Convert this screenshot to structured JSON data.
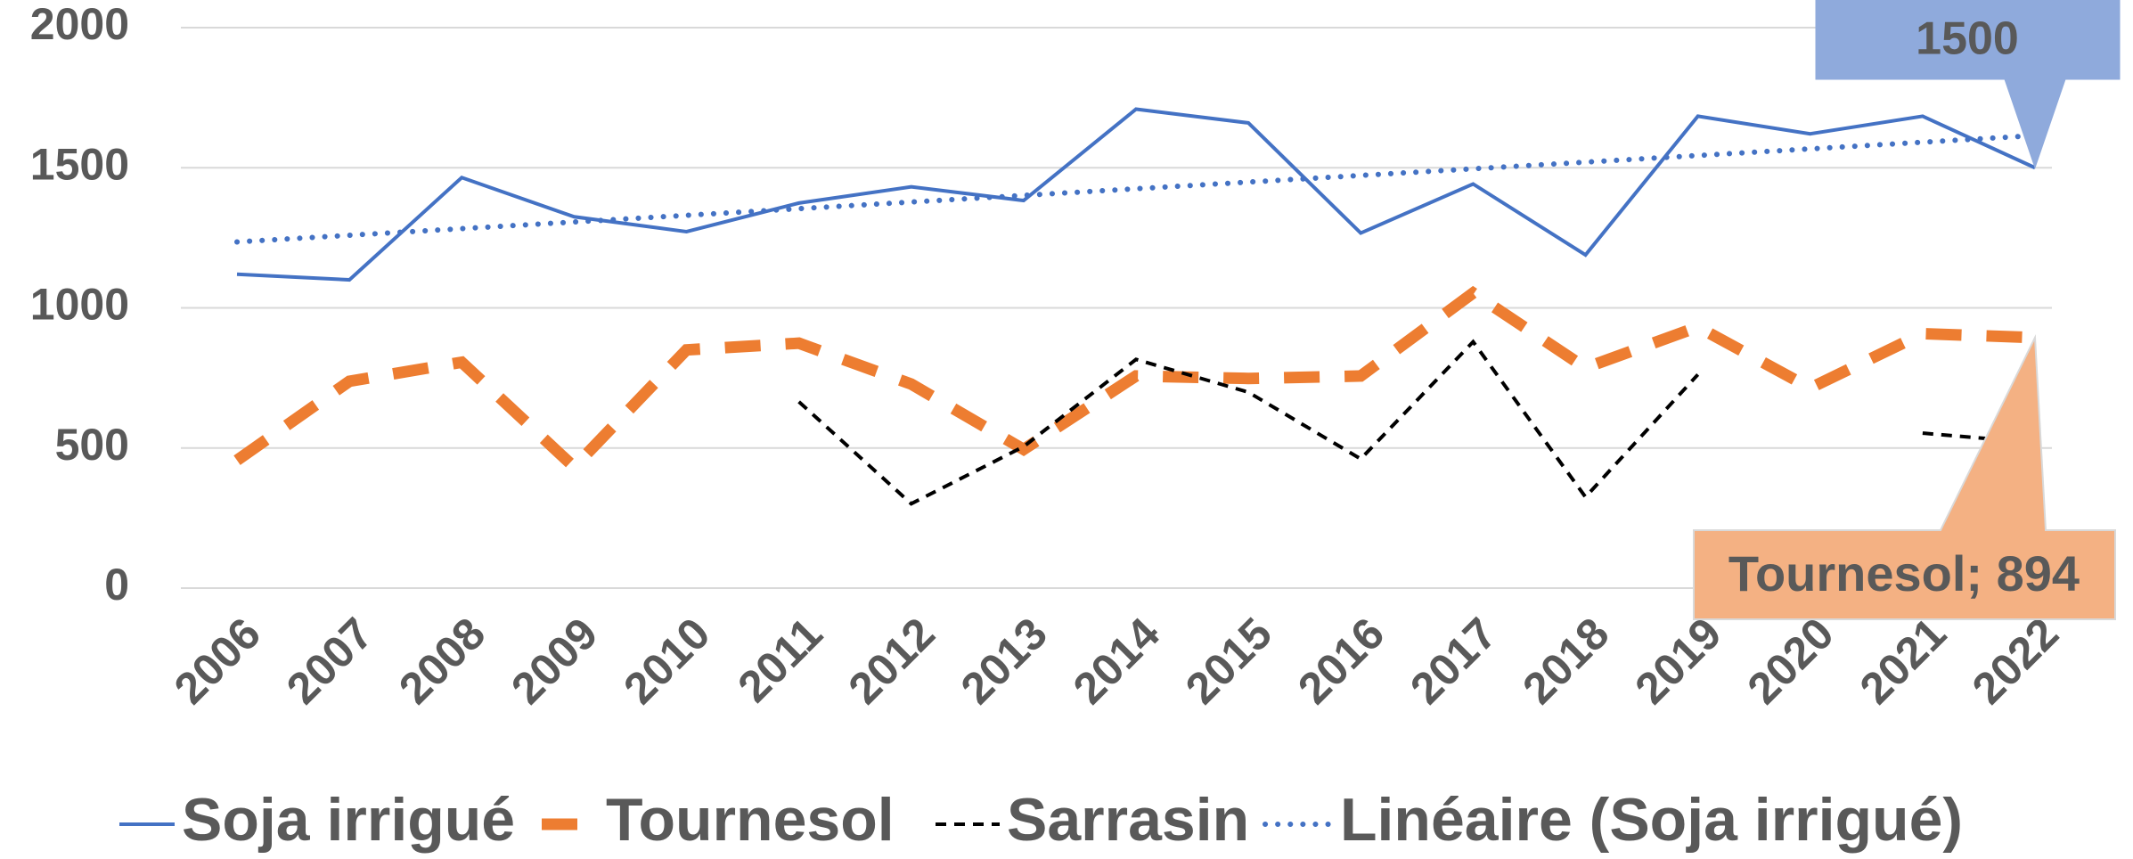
{
  "chart_data": {
    "type": "line",
    "categories": [
      "2006",
      "2007",
      "2008",
      "2009",
      "2010",
      "2011",
      "2012",
      "2013",
      "2014",
      "2015",
      "2016",
      "2017",
      "2018",
      "2019",
      "2020",
      "2021",
      "2022"
    ],
    "series": [
      {
        "name": "Soja irrigué",
        "color": "#4472c4",
        "style": "solid",
        "values": [
          1120,
          1100,
          1465,
          1325,
          1272,
          1374,
          1432,
          1383,
          1709,
          1660,
          1267,
          1442,
          1189,
          1684,
          1621,
          1684,
          1500
        ],
        "value_labels": [
          null,
          null,
          null,
          null,
          null,
          null,
          null,
          null,
          null,
          null,
          null,
          null,
          null,
          null,
          null,
          null,
          "1500"
        ]
      },
      {
        "name": "Tournesol",
        "color": "#ed7d31",
        "style": "dashed",
        "values": [
          456,
          738,
          806,
          432,
          850,
          874,
          728,
          495,
          757,
          748,
          757,
          1053,
          786,
          932,
          714,
          908,
          894
        ],
        "value_labels": [
          null,
          null,
          null,
          null,
          null,
          null,
          null,
          null,
          null,
          null,
          null,
          null,
          null,
          null,
          null,
          null,
          "Tournesol; 894"
        ]
      },
      {
        "name": "Sarrasin",
        "color": "#000000",
        "style": "shortdash",
        "values": [
          null,
          null,
          null,
          null,
          null,
          665,
          301,
          505,
          816,
          699,
          461,
          879,
          325,
          762,
          null,
          553,
          519
        ]
      },
      {
        "name": "Linéaire (Soja irrigué)",
        "color": "#4472c4",
        "style": "dotted",
        "trendline": true
      }
    ],
    "ylim": [
      0,
      2000
    ],
    "yticks": [
      0,
      500,
      1000,
      1500,
      2000
    ],
    "grid": true,
    "legend": "bottom"
  }
}
